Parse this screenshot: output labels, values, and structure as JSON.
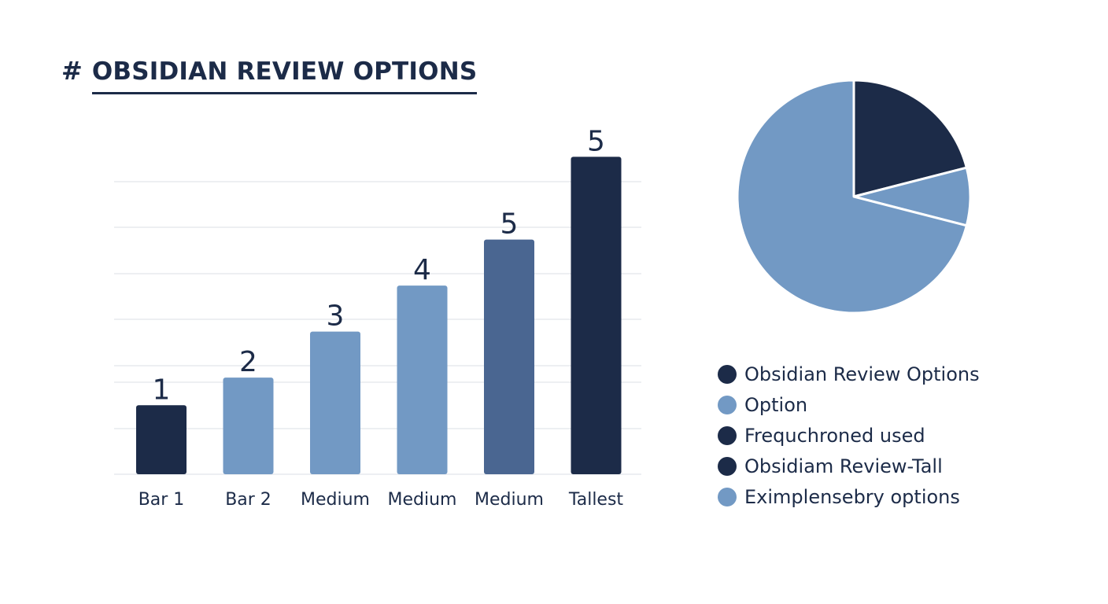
{
  "title": {
    "hash": "#",
    "text": "OBSIDIAN REVIEW OPTIONS"
  },
  "colors": {
    "navy": "#1c2b48",
    "steel_blue": "#4a6691",
    "light_blue": "#7299c4",
    "grid": "#e2e5ea",
    "text": "#1c2b48"
  },
  "chart_data": [
    {
      "type": "bar",
      "categories": [
        "Bar 1",
        "Bar 2",
        "Medium",
        "Medium",
        "Medium",
        "Tallest"
      ],
      "values": [
        1,
        2,
        3,
        4,
        5,
        5
      ],
      "data_labels": [
        "1",
        "2",
        "3",
        "4",
        "5",
        "5"
      ],
      "bar_colors": [
        "#1c2b48",
        "#7299c4",
        "#7299c4",
        "#7299c4",
        "#4a6691",
        "#1c2b48"
      ],
      "heights": [
        1.5,
        2.1,
        3.1,
        4.1,
        5.1,
        6.9
      ],
      "ylim": [
        0,
        7
      ],
      "grid": true,
      "xlabel": "",
      "ylabel": ""
    },
    {
      "type": "pie",
      "slices": [
        {
          "value": 21,
          "color": "#1c2b48"
        },
        {
          "value": 8,
          "color": "#7299c4"
        },
        {
          "value": 71,
          "color": "#7299c4"
        }
      ],
      "start_angle": "12 o'clock, clockwise",
      "legend_position": "bottom",
      "legend": [
        {
          "label": "Obsidian Review Options",
          "color": "#1c2b48"
        },
        {
          "label": "Option",
          "color": "#7299c4"
        },
        {
          "label": "Frequchroned used",
          "color": "#1c2b48"
        },
        {
          "label": "Obsidiam Review-Tall",
          "color": "#1c2b48"
        },
        {
          "label": "Eximplensebry options",
          "color": "#7299c4"
        }
      ]
    }
  ]
}
